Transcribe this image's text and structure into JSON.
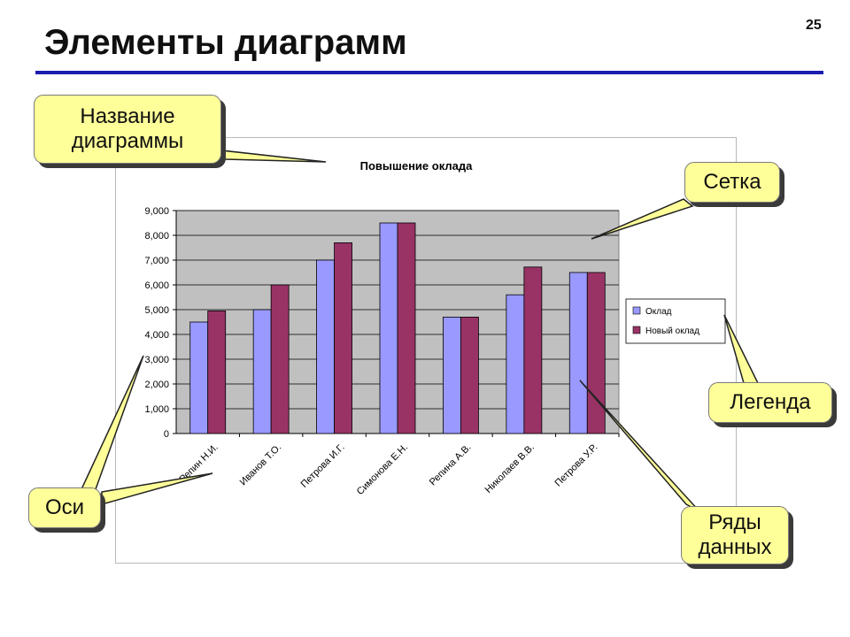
{
  "slide": {
    "title": "Элементы диаграмм",
    "page_number": "25",
    "accent_color": "#1c1cb0"
  },
  "callouts": {
    "chart_title": "Название\nдиаграммы",
    "grid": "Сетка",
    "legend": "Легенда",
    "axes": "Оси",
    "data_series": "Ряды\nданных",
    "fill_color": "#ffff99"
  },
  "chart_data": {
    "type": "bar",
    "title": "Повышение оклада",
    "xlabel": "",
    "ylabel": "",
    "categories": [
      "Репин Н.И.",
      "Иванов Т.О.",
      "Петрова И.Г.",
      "Симонова Е.Н.",
      "Репина А.В.",
      "Николаев В.В.",
      "Петрова У.Р."
    ],
    "series": [
      {
        "name": "Оклад",
        "color": "#9999ff",
        "values": [
          4500,
          5000,
          7000,
          8500,
          4700,
          5600,
          6500
        ]
      },
      {
        "name": "Новый оклад",
        "color": "#993366",
        "values": [
          4950,
          6000,
          7700,
          8500,
          4700,
          6720,
          6500
        ]
      }
    ],
    "y_ticks": [
      "0",
      "1,000",
      "2,000",
      "3,000",
      "4,000",
      "5,000",
      "6,000",
      "7,000",
      "8,000",
      "9,000"
    ],
    "ylim": [
      0,
      9000
    ],
    "grid": true,
    "plot_background": "#c0c0c0",
    "legend_position": "right"
  }
}
